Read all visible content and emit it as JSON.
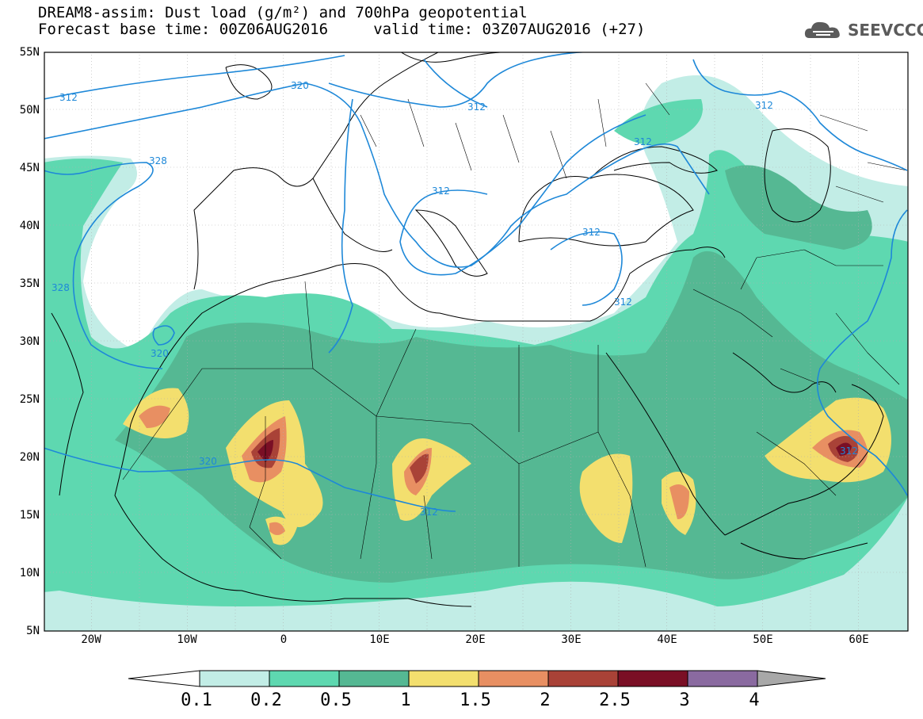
{
  "header": {
    "line1": "DREAM8-assim: Dust load (g/m²) and 700hPa geopotential",
    "line2": "Forecast base time: 00Z06AUG2016     valid time: 03Z07AUG2016 (+27)",
    "logo_text": "SEEVCCC",
    "logo_icon": "cloud-icon"
  },
  "map": {
    "lon_range": [
      -25,
      65
    ],
    "lat_range": [
      5,
      55
    ],
    "lat_labels": [
      "55N",
      "50N",
      "45N",
      "40N",
      "35N",
      "30N",
      "25N",
      "20N",
      "15N",
      "10N",
      "5N"
    ],
    "lon_labels": [
      "20W",
      "10W",
      "0",
      "10E",
      "20E",
      "30E",
      "40E",
      "50E",
      "60E"
    ],
    "contour_labels": [
      "312",
      "320",
      "312",
      "312",
      "328",
      "312",
      "312",
      "328",
      "320",
      "320",
      "312",
      "312",
      "312",
      "312"
    ],
    "colors": {
      "dust_0.1": "#c2ede6",
      "dust_0.2": "#5ed8b0",
      "dust_0.5": "#55b893",
      "dust_1": "#f3df6e",
      "dust_1.5": "#e88f62",
      "dust_2": "#a94237",
      "dust_2.5": "#7a0f25",
      "dust_3": "#8a6aa0",
      "dust_4": "#a8a8a8",
      "contour": "#1e88d8",
      "coast": "#000000"
    }
  },
  "colorbar": {
    "labels": [
      "0.1",
      "0.2",
      "0.5",
      "1",
      "1.5",
      "2",
      "2.5",
      "3",
      "4"
    ]
  }
}
